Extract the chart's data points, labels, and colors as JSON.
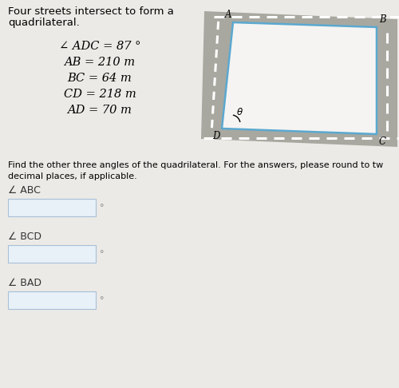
{
  "title_line1": "Four streets intersect to form a",
  "title_line2": "quadrilateral.",
  "given_info": [
    "∠ ADC = 87 °",
    "AB = 210 m",
    "BC = 64 m",
    "CD = 218 m",
    "AD = 70 m"
  ],
  "instruction_line1": "Find the other three angles of the quadrilateral. For the answers, please round to tw",
  "instruction_line2": "decimal places, if applicable.",
  "angle_labels": [
    "∠ ABC",
    "∠ BCD",
    "∠ BAD"
  ],
  "bg_color": "#eceae6",
  "road_color": "#a8a8a0",
  "road_edge_color": "#888880",
  "inner_fill": "#f5f4f2",
  "inner_border": "#5ba8d0",
  "dash_color": "#d8d6d0",
  "answer_box_fill": "#e8f0f8",
  "answer_box_border": "#a8c0d8",
  "text_color": "#333333",
  "label_color": "#555555"
}
